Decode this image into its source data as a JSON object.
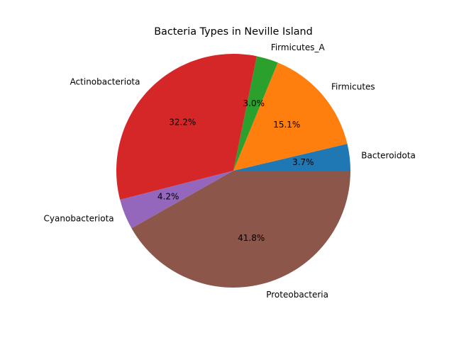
{
  "chart_data": {
    "type": "pie",
    "title": "Bacteria Types in Neville Island",
    "slices": [
      {
        "label": "Bacteroidota",
        "value": 3.7,
        "pct_text": "3.7%",
        "color": "#1f77b4"
      },
      {
        "label": "Firmicutes",
        "value": 15.1,
        "pct_text": "15.1%",
        "color": "#ff7f0e"
      },
      {
        "label": "Firmicutes_A",
        "value": 3.0,
        "pct_text": "3.0%",
        "color": "#2ca02c"
      },
      {
        "label": "Actinobacteriota",
        "value": 32.2,
        "pct_text": "32.2%",
        "color": "#d62728"
      },
      {
        "label": "Cyanobacteriota",
        "value": 4.2,
        "pct_text": "4.2%",
        "color": "#9467bd"
      },
      {
        "label": "Proteobacteria",
        "value": 41.8,
        "pct_text": "41.8%",
        "color": "#8c564b"
      }
    ],
    "start_angle_deg": 0,
    "direction": "counterclockwise"
  }
}
